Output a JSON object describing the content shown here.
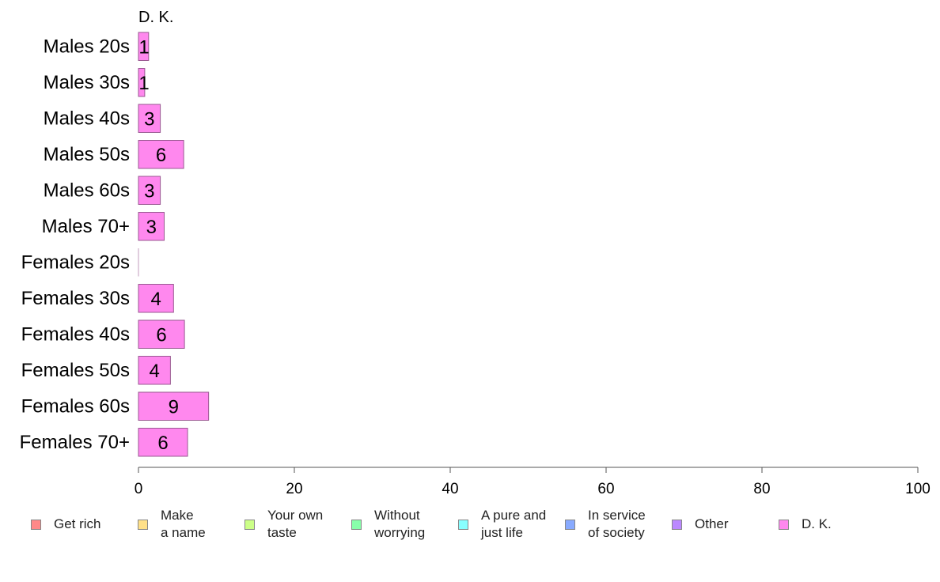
{
  "chart_data": {
    "type": "bar",
    "orientation": "horizontal",
    "stacked": true,
    "title": "",
    "shown_series_title": "D. K.",
    "categories": [
      "Males 20s",
      "Males 30s",
      "Males 40s",
      "Males 50s",
      "Males 60s",
      "Males 70+",
      "Females 20s",
      "Females 30s",
      "Females 40s",
      "Females 50s",
      "Females 60s",
      "Females 70+"
    ],
    "series": [
      {
        "name": "D. K.",
        "color": "#ff88ee",
        "values": [
          1.3,
          0.8,
          2.8,
          5.8,
          2.8,
          3.3,
          0.0,
          4.5,
          5.9,
          4.1,
          9.0,
          6.3
        ],
        "labels": [
          "1",
          "1",
          "3",
          "6",
          "3",
          "3",
          "",
          "4",
          "6",
          "4",
          "9",
          "6"
        ]
      }
    ],
    "xlim": [
      0,
      100
    ],
    "xticks": [
      "0",
      "20",
      "40",
      "60",
      "80",
      "100"
    ],
    "grid": false,
    "legend_position": "bottom",
    "legend": [
      {
        "label": "Get rich",
        "color": "#ff8888"
      },
      {
        "label": "Make\na name",
        "color": "#ffe088"
      },
      {
        "label": "Your own\ntaste",
        "color": "#ccff88"
      },
      {
        "label": "Without\nworrying",
        "color": "#88ffaa"
      },
      {
        "label": "A pure and\njust life",
        "color": "#88ffff"
      },
      {
        "label": "In service\nof society",
        "color": "#88aaff"
      },
      {
        "label": "Other",
        "color": "#bb88ff"
      },
      {
        "label": "D. K.",
        "color": "#ff88ee"
      }
    ]
  }
}
